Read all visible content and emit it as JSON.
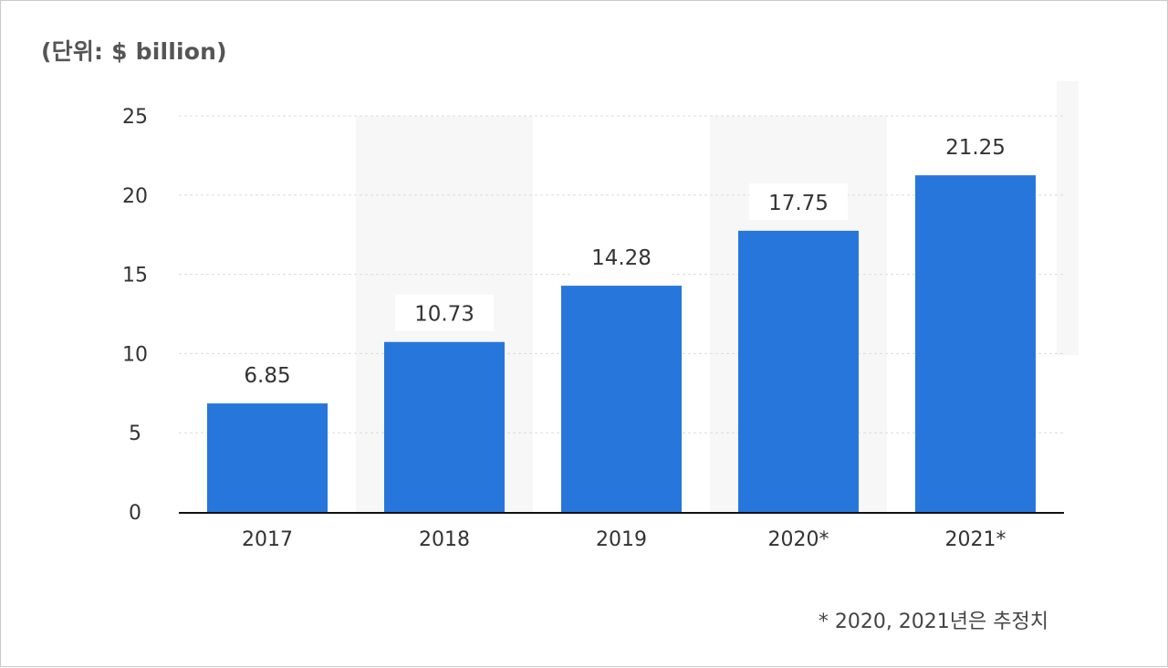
{
  "unit_label": "(단위:  $ billion)",
  "footnote": "* 2020, 2021년은 추정치",
  "colors": {
    "bar": "#2776dc",
    "gridline": "#dcdcdc",
    "axis": "#111111",
    "band": "#f7f7f7",
    "text": "#333333"
  },
  "chart_data": {
    "type": "bar",
    "title": "",
    "xlabel": "",
    "ylabel": "(단위:  $ billion)",
    "categories": [
      "2017",
      "2018",
      "2019",
      "2020*",
      "2021*"
    ],
    "values": [
      6.85,
      10.73,
      14.28,
      17.75,
      21.25
    ],
    "data_labels": [
      "6.85",
      "10.73",
      "14.28",
      "17.75",
      "21.25"
    ],
    "ylim": [
      0,
      25
    ],
    "yticks": [
      0,
      5,
      10,
      15,
      20,
      25
    ],
    "grid": true,
    "legend": "none"
  }
}
